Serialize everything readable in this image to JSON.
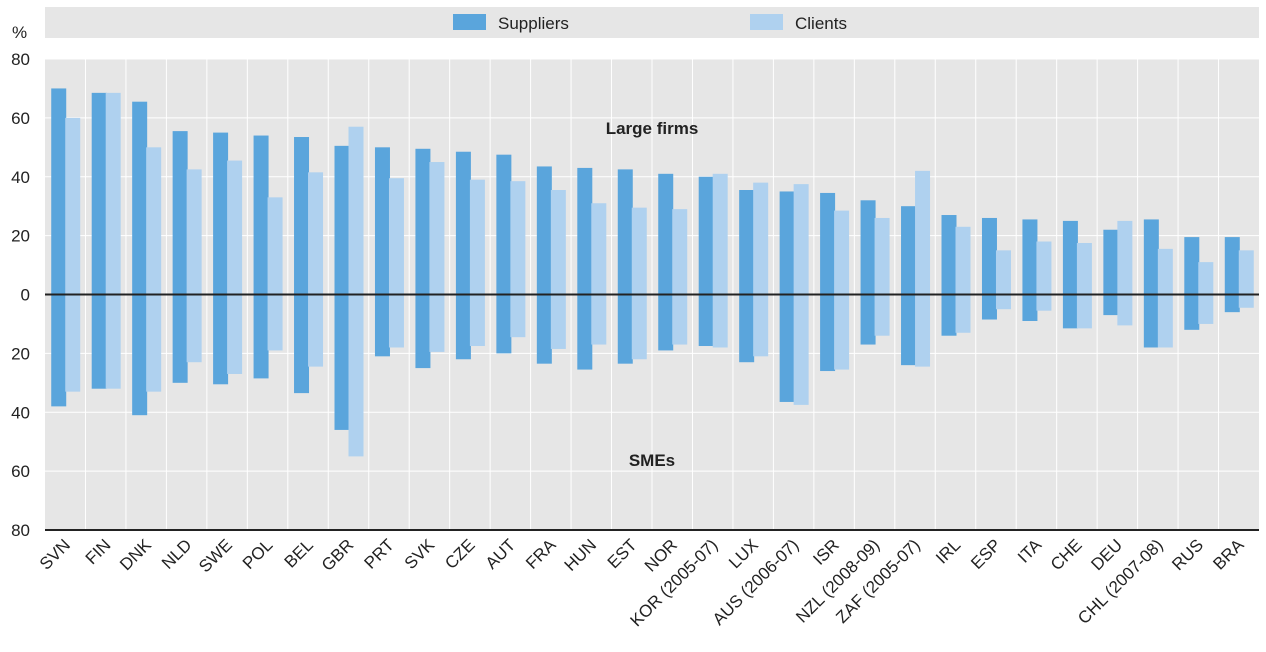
{
  "chart_data": {
    "type": "bar",
    "unit_label": "%",
    "annotations": {
      "upper": "Large firms",
      "lower": "SMEs"
    },
    "ylim": [
      -80,
      80
    ],
    "yticks": [
      80,
      60,
      40,
      20,
      0,
      -20,
      -40,
      -60,
      -80
    ],
    "ytick_labels": [
      "80",
      "60",
      "40",
      "20",
      "0",
      "20",
      "40",
      "60",
      "80"
    ],
    "grid": true,
    "legend_position": "top",
    "colors": {
      "Suppliers": "#5aa5dc",
      "Clients": "#afd1ef",
      "plot_background": "#e6e6e6",
      "grid": "#ffffff"
    },
    "categories": [
      "SVN",
      "FIN",
      "DNK",
      "NLD",
      "SWE",
      "POL",
      "BEL",
      "GBR",
      "PRT",
      "SVK",
      "CZE",
      "AUT",
      "FRA",
      "HUN",
      "EST",
      "NOR",
      "KOR (2005-07)",
      "LUX",
      "AUS (2006-07)",
      "ISR",
      "NZL (2008-09)",
      "ZAF (2005-07)",
      "IRL",
      "ESP",
      "ITA",
      "CHE",
      "DEU",
      "CHL (2007-08)",
      "RUS",
      "BRA"
    ],
    "series": [
      {
        "name": "Suppliers",
        "group": "Large firms",
        "values": [
          70,
          68.5,
          65.5,
          55.5,
          55,
          54,
          53.5,
          50.5,
          50,
          49.5,
          48.5,
          47.5,
          43.5,
          43,
          42.5,
          41,
          40,
          35.5,
          35,
          34.5,
          32,
          30,
          27,
          26,
          25.5,
          25,
          22,
          25.5,
          19.5,
          19.5
        ]
      },
      {
        "name": "Clients",
        "group": "Large firms",
        "values": [
          60,
          68.5,
          50,
          42.5,
          45.5,
          33,
          41.5,
          57,
          39.5,
          45,
          39,
          38.5,
          35.5,
          31,
          29.5,
          29,
          41,
          38,
          37.5,
          28.5,
          26,
          42,
          23,
          15,
          18,
          17.5,
          25,
          15.5,
          11,
          15
        ]
      },
      {
        "name": "Suppliers",
        "group": "SMEs",
        "values": [
          -38,
          -32,
          -41,
          -30,
          -30.5,
          -28.5,
          -33.5,
          -46,
          -21,
          -25,
          -22,
          -20,
          -23.5,
          -25.5,
          -23.5,
          -19,
          -17.5,
          -23,
          -36.5,
          -26,
          -17,
          -24,
          -14,
          -8.5,
          -9,
          -11.5,
          -7,
          -18,
          -12,
          -6
        ]
      },
      {
        "name": "Clients",
        "group": "SMEs",
        "values": [
          -33,
          -32,
          -33,
          -23,
          -27,
          -19,
          -24.5,
          -55,
          -18,
          -19.5,
          -17.5,
          -14.5,
          -18.5,
          -17,
          -22,
          -17,
          -18,
          -21,
          -37.5,
          -25.5,
          -14,
          -24.5,
          -13,
          -5,
          -5.5,
          -11.5,
          -10.5,
          -18,
          -10,
          -4.5
        ]
      }
    ]
  }
}
